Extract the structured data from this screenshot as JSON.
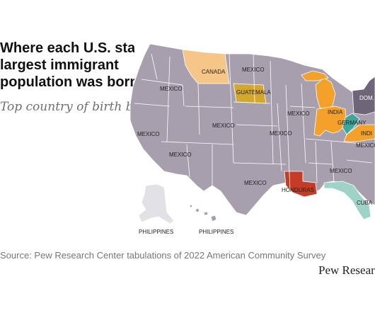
{
  "title_lines": [
    "Where each U.S. state’s",
    "largest immigrant",
    "population was born"
  ],
  "subtitle": "Top country of birth by state,",
  "source": "Source: Pew Research Center tabulations of 2022 American Community Survey",
  "logo": "Pew Research Center",
  "colors": {
    "mexico": "#a79fae",
    "canada": "#f6c689",
    "guatemala": "#d4a72e",
    "india": "#f3a12b",
    "honduras": "#c43b26",
    "cuba": "#9fd3c8",
    "germany": "#3fa79a",
    "dominican_republic": "#6e6579",
    "philippines": "#e2e2e6",
    "state_border": "#ffffff"
  },
  "labels": {
    "mexico": "MEXICO",
    "canada": "CANADA",
    "guatemala": "GUATEMALA",
    "india": "INDIA",
    "india_short": "INDI",
    "germany": "GERMANY",
    "honduras": "HONDURAS",
    "cuba": "CUBA",
    "dominican_republic": "DOM.",
    "philippines": "PHILIPPINES"
  }
}
